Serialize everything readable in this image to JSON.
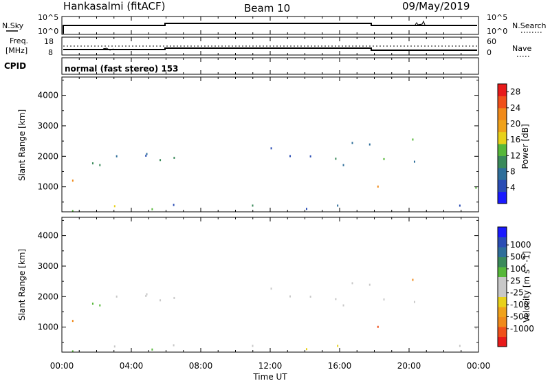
{
  "header": {
    "station": "Hankasalmi (fitACF)",
    "beam": "Beam 10",
    "date": "09/May/2019"
  },
  "strip_nsky": {
    "left_label": "N.Sky",
    "right_label": "N.Search",
    "ticks_left": [
      "10^5",
      "10^0"
    ],
    "ticks_right": [
      "10^5",
      "10^0"
    ]
  },
  "strip_freq": {
    "left_label_1": "Freq.",
    "left_label_2": "[MHz]",
    "ticks_left": [
      "18",
      "8"
    ],
    "ticks_right": [
      "60",
      "0"
    ],
    "right_label": "Nave"
  },
  "cpid": {
    "label": "CPID",
    "value": "normal (fast stereo) 153"
  },
  "x_axis": {
    "label": "Time UT",
    "ticks": [
      "00:00",
      "04:00",
      "08:00",
      "12:00",
      "16:00",
      "20:00",
      "00:00"
    ]
  },
  "y_axis": {
    "label": "Slant Range [km]",
    "ticks": [
      "1000",
      "2000",
      "3000",
      "4000"
    ]
  },
  "colors": {
    "power": [
      "#1a1aff",
      "#2a4db5",
      "#2e6e9a",
      "#3a8a5a",
      "#57b83a",
      "#e8d11a",
      "#f0a21a",
      "#f08a1a",
      "#f0501a",
      "#e81a1a"
    ],
    "velocity": [
      "#e81a1a",
      "#f0501a",
      "#f08a1a",
      "#f0a21a",
      "#e8d11a",
      "#c8c8c8",
      "#c8c8c8",
      "#57b83a",
      "#3a8a5a",
      "#2e6e9a",
      "#2a4db5",
      "#1a1aff"
    ]
  },
  "chart_data": [
    {
      "type": "heatmap",
      "title": "",
      "xlabel": "",
      "ylabel": "Slant Range [km]",
      "xlim": [
        "00:00",
        "24:00"
      ],
      "ylim": [
        180,
        4600
      ],
      "colorbar_label": "Power [dB]",
      "colorbar_ticks": [
        "4",
        "8",
        "12",
        "16",
        "20",
        "24",
        "28"
      ],
      "colorbar_range": [
        0,
        30
      ]
    },
    {
      "type": "heatmap",
      "title": "",
      "xlabel": "Time UT",
      "ylabel": "Slant Range [km]",
      "xlim": [
        "00:00",
        "24:00"
      ],
      "ylim": [
        180,
        4600
      ],
      "colorbar_label": "Velocity [m s^-1]",
      "colorbar_ticks": [
        "1000",
        "500",
        "100",
        "25",
        "-25",
        "-100",
        "-500",
        "-1000"
      ]
    }
  ]
}
